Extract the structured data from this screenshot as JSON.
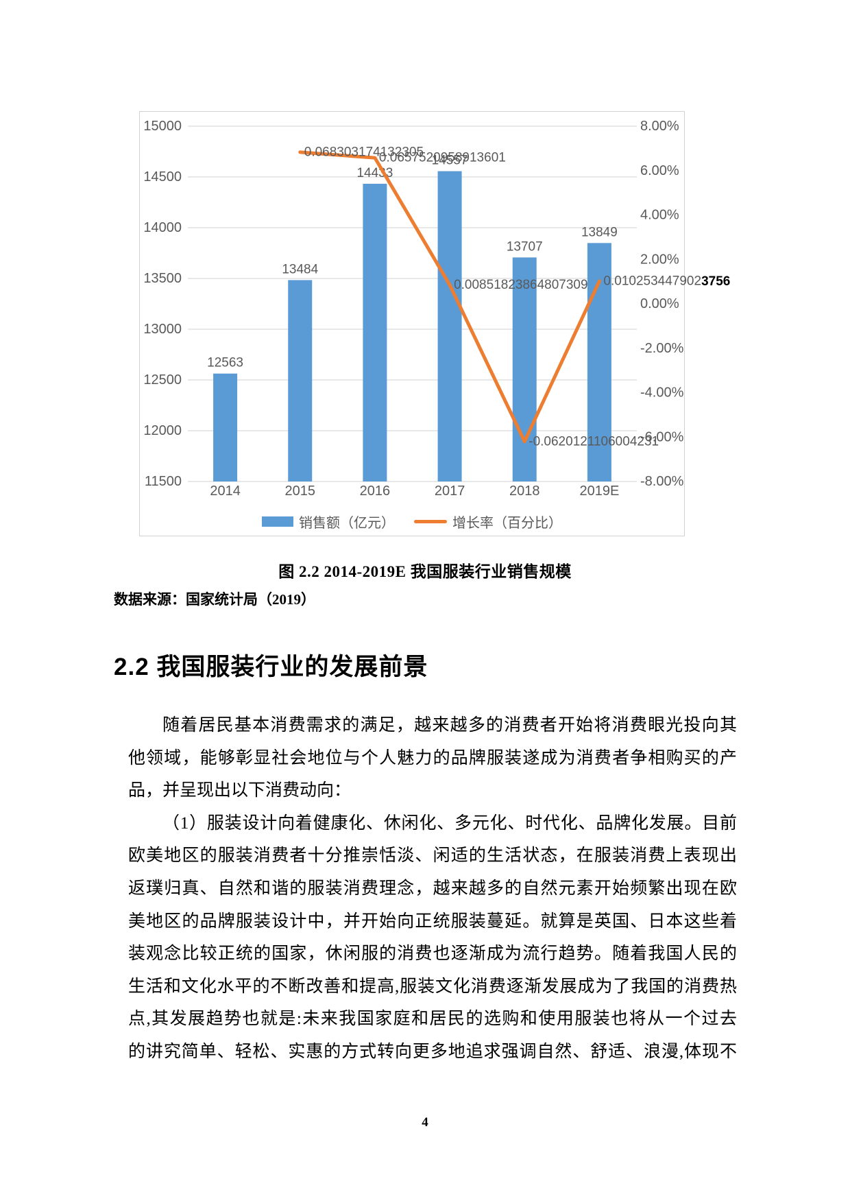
{
  "page": {
    "number": "4"
  },
  "figure": {
    "caption": "图 2.2 2014-2019E 我国服装行业销售规模",
    "source": "数据来源：国家统计局（2019）"
  },
  "section": {
    "heading": "2.2 我国服装行业的发展前景"
  },
  "body": {
    "paragraphs": [
      {
        "indent": true,
        "last_line_justified": false,
        "lines": [
          "随着居民基本消费需求的满足，越来越多的消费者开始将消费眼光投向其",
          "他领域，能够彰显社会地位与个人魅力的品牌服装遂成为消费者争相购买的产",
          "品，并呈现出以下消费动向："
        ]
      },
      {
        "indent": true,
        "last_line_justified": true,
        "lines": [
          "（1）服装设计向着健康化、休闲化、多元化、时代化、品牌化发展。目前",
          "欧美地区的服装消费者十分推崇恬淡、闲适的生活状态，在服装消费上表现出",
          "返璞归真、自然和谐的服装消费理念，越来越多的自然元素开始频繁出现在欧",
          "美地区的品牌服装设计中，并开始向正统服装蔓延。就算是英国、日本这些着",
          "装观念比较正统的国家，休闲服的消费也逐渐成为流行趋势。随着我国人民的",
          "生活和文化水平的不断改善和提高,服装文化消费逐渐发展成为了我国的消费热",
          "点,其发展趋势也就是:未来我国家庭和居民的选购和使用服装也将从一个过去",
          "的讲究简单、轻松、实惠的方式转向更多地追求强调自然、舒适、浪漫,体现不"
        ]
      }
    ]
  },
  "chart_data": {
    "type": "bar+line combo",
    "categories": [
      "2014",
      "2015",
      "2016",
      "2017",
      "2018",
      "2019E"
    ],
    "series": [
      {
        "name": "销售额（亿元）",
        "type": "bar",
        "color": "#5B9BD5",
        "values": [
          12563,
          13484,
          14433,
          14557,
          13707,
          13849
        ]
      },
      {
        "name": "增长率（百分比）",
        "type": "line",
        "color": "#ED7D31",
        "values": [
          null,
          0.068303174132305,
          0.0657520958913601,
          0.00851823864807309,
          -0.0620121106004231,
          0.0102534479023756
        ],
        "labels": [
          null,
          "0.068303174132305",
          "0.0657520958913601",
          "0.00851823864807309",
          "-0.0620121106004231",
          "0.010253447902"
        ],
        "label_overflow_bold": "3756"
      }
    ],
    "left_axis": {
      "min": 11500,
      "max": 15000,
      "ticks": [
        "15000",
        "14500",
        "14000",
        "13500",
        "13000",
        "12500",
        "12000",
        "11500"
      ]
    },
    "right_axis": {
      "min": -0.08,
      "max": 0.08,
      "ticks": [
        "8.00%",
        "6.00%",
        "4.00%",
        "2.00%",
        "0.00%",
        "-2.00%",
        "-4.00%",
        "-6.00%",
        "-8.00%"
      ]
    },
    "grid": true,
    "legend_position": "bottom",
    "colors": {
      "axis_text": "#595959",
      "gridline": "#D9D9D9",
      "frame_border": "#D2D2D2"
    }
  }
}
